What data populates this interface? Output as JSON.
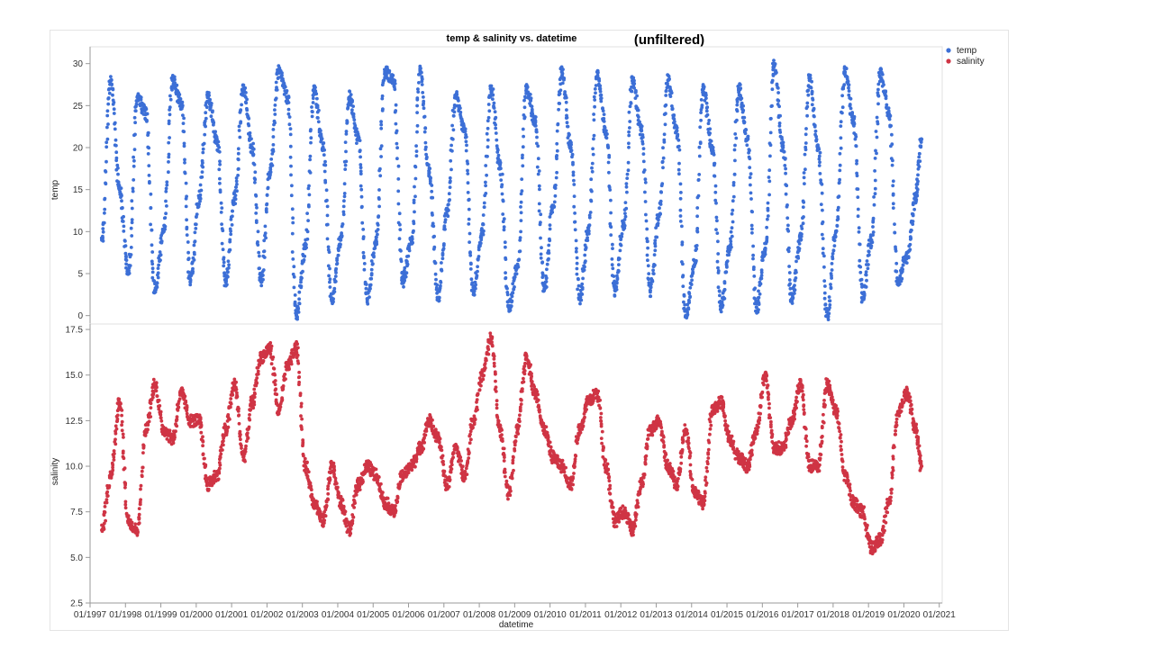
{
  "colors": {
    "temp": "#3c6fd6",
    "salinity": "#cf3444",
    "axis": "#9a9a9a",
    "grid": "#e0e0e0"
  },
  "chart_data": {
    "type": "scatter",
    "title": "temp &  salinity vs.  datetime",
    "annotation": "(unfiltered)",
    "xlabel": "datetime",
    "legend_position": "top-right",
    "grid": false,
    "x_ticks": [
      "01/1997",
      "01/1998",
      "01/1999",
      "01/2000",
      "01/2001",
      "01/2002",
      "01/2003",
      "01/2004",
      "01/2005",
      "01/2006",
      "01/2007",
      "01/2008",
      "01/2009",
      "01/2010",
      "01/2011",
      "01/2012",
      "01/2013",
      "01/2014",
      "01/2015",
      "01/2016",
      "01/2017",
      "01/2018",
      "01/2019",
      "01/2020",
      "01/2021"
    ],
    "x_range": [
      "1997-01",
      "2021-02"
    ],
    "panels": [
      {
        "series": "temp",
        "ylabel": "temp",
        "ylim": [
          -1,
          32
        ],
        "y_ticks": [
          0,
          5,
          10,
          15,
          20,
          25,
          30
        ],
        "x_date": [
          "1997-05",
          "1997-08",
          "1997-11",
          "1998-02",
          "1998-05",
          "1998-08",
          "1998-11",
          "1999-02",
          "1999-05",
          "1999-08",
          "1999-11",
          "2000-02",
          "2000-05",
          "2000-08",
          "2000-11",
          "2001-02",
          "2001-05",
          "2001-08",
          "2001-11",
          "2002-02",
          "2002-05",
          "2002-08",
          "2002-11",
          "2003-02",
          "2003-05",
          "2003-08",
          "2003-11",
          "2004-02",
          "2004-05",
          "2004-08",
          "2004-11",
          "2005-02",
          "2005-05",
          "2005-08",
          "2005-11",
          "2006-02",
          "2006-05",
          "2006-08",
          "2006-11",
          "2007-02",
          "2007-05",
          "2007-08",
          "2007-11",
          "2008-02",
          "2008-05",
          "2008-08",
          "2008-11",
          "2009-02",
          "2009-05",
          "2009-08",
          "2009-11",
          "2010-02",
          "2010-05",
          "2010-08",
          "2010-11",
          "2011-02",
          "2011-05",
          "2011-08",
          "2011-11",
          "2012-02",
          "2012-05",
          "2012-08",
          "2012-11",
          "2013-02",
          "2013-05",
          "2013-08",
          "2013-11",
          "2014-02",
          "2014-05",
          "2014-08",
          "2014-11",
          "2015-02",
          "2015-05",
          "2015-08",
          "2015-11",
          "2016-02",
          "2016-05",
          "2016-08",
          "2016-11",
          "2017-02",
          "2017-05",
          "2017-08",
          "2017-11",
          "2018-02",
          "2018-05",
          "2018-08",
          "2018-11",
          "2019-02",
          "2019-05",
          "2019-08",
          "2019-11",
          "2020-02",
          "2020-05",
          "2020-07"
        ],
        "values": [
          9,
          28,
          15,
          5,
          26,
          24,
          3,
          10,
          28,
          25,
          4,
          14,
          26,
          21,
          4,
          14,
          27,
          20,
          4,
          17,
          29,
          26,
          0,
          8,
          27,
          20,
          2,
          9,
          26,
          21,
          2,
          9,
          29,
          28,
          4,
          9,
          29,
          17,
          2,
          12,
          26,
          22,
          3,
          10,
          27,
          18,
          1,
          6,
          27,
          23,
          3,
          13,
          29,
          20,
          2,
          10,
          29,
          22,
          3,
          11,
          28,
          22,
          3,
          12,
          28,
          22,
          0,
          6,
          27,
          20,
          1,
          8,
          27,
          21,
          1,
          8,
          30,
          20,
          2,
          9,
          28,
          20,
          0,
          10,
          29,
          23,
          2,
          9,
          29,
          24,
          4,
          7,
          14,
          21
        ]
      },
      {
        "series": "salinity",
        "ylabel": "salinity",
        "ylim": [
          2.5,
          17.8
        ],
        "y_ticks": [
          2.5,
          5.0,
          7.5,
          10.0,
          12.5,
          15.0,
          17.5
        ],
        "x_date": [
          "1997-05",
          "1997-08",
          "1997-11",
          "1998-02",
          "1998-05",
          "1998-08",
          "1998-11",
          "1999-02",
          "1999-05",
          "1999-08",
          "1999-11",
          "2000-02",
          "2000-05",
          "2000-08",
          "2000-11",
          "2001-02",
          "2001-05",
          "2001-08",
          "2001-11",
          "2002-02",
          "2002-05",
          "2002-08",
          "2002-11",
          "2003-02",
          "2003-05",
          "2003-08",
          "2003-11",
          "2004-02",
          "2004-05",
          "2004-08",
          "2004-11",
          "2005-02",
          "2005-05",
          "2005-08",
          "2005-11",
          "2006-02",
          "2006-05",
          "2006-08",
          "2006-11",
          "2007-02",
          "2007-05",
          "2007-08",
          "2007-11",
          "2008-02",
          "2008-05",
          "2008-08",
          "2008-11",
          "2009-02",
          "2009-05",
          "2009-08",
          "2009-11",
          "2010-02",
          "2010-05",
          "2010-08",
          "2010-11",
          "2011-02",
          "2011-05",
          "2011-08",
          "2011-11",
          "2012-02",
          "2012-05",
          "2012-08",
          "2012-11",
          "2013-02",
          "2013-05",
          "2013-08",
          "2013-11",
          "2014-02",
          "2014-05",
          "2014-08",
          "2014-11",
          "2015-02",
          "2015-05",
          "2015-08",
          "2015-11",
          "2016-02",
          "2016-05",
          "2016-08",
          "2016-11",
          "2017-02",
          "2017-05",
          "2017-08",
          "2017-11",
          "2018-02",
          "2018-05",
          "2018-08",
          "2018-11",
          "2019-02",
          "2019-05",
          "2019-08",
          "2019-11",
          "2020-02",
          "2020-05",
          "2020-07"
        ],
        "values": [
          6.5,
          9.5,
          13.5,
          7,
          6.5,
          12,
          14.5,
          12,
          11.5,
          14,
          12.5,
          12.5,
          9,
          9.5,
          12,
          14.5,
          10.5,
          13.5,
          16,
          16.5,
          13,
          15.5,
          16.5,
          10,
          8,
          7,
          10,
          8,
          6.5,
          9,
          10,
          9.5,
          8,
          7.5,
          9.5,
          10,
          11,
          12.5,
          11.5,
          9,
          11,
          9.5,
          12.5,
          15,
          17,
          12,
          8.5,
          12,
          16,
          14,
          12,
          10.5,
          10,
          9,
          12,
          13.5,
          14,
          10,
          7,
          7.5,
          6.5,
          9,
          12,
          12.5,
          10,
          9,
          12,
          8.5,
          8,
          13,
          13.5,
          11.5,
          10.5,
          10,
          12,
          15,
          11,
          11,
          12.5,
          14.5,
          10,
          10,
          14.5,
          13,
          9.5,
          8,
          7.5,
          5.5,
          6,
          8,
          13,
          14,
          12,
          10
        ]
      }
    ],
    "legend": [
      {
        "series": "temp",
        "label": "temp"
      },
      {
        "series": "salinity",
        "label": "salinity"
      }
    ]
  }
}
